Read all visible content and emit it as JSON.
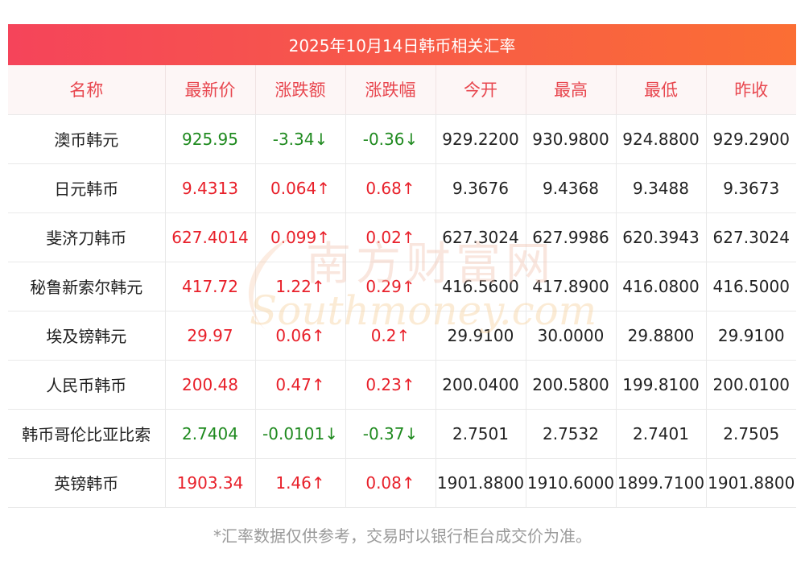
{
  "title": "2025年10月14日韩币相关汇率",
  "headers": [
    "名称",
    "最新价",
    "涨跌额",
    "涨跌幅",
    "今开",
    "最高",
    "最低",
    "昨收"
  ],
  "rows": [
    {
      "name": "澳币韩元",
      "latest": "925.95",
      "change": "-3.34↓",
      "change_pct": "-0.36↓",
      "open": "929.2200",
      "high": "930.9800",
      "low": "924.8800",
      "prev_close": "929.2900",
      "direction": "down"
    },
    {
      "name": "日元韩币",
      "latest": "9.4313",
      "change": "0.064↑",
      "change_pct": "0.68↑",
      "open": "9.3676",
      "high": "9.4368",
      "low": "9.3488",
      "prev_close": "9.3673",
      "direction": "up"
    },
    {
      "name": "斐济刀韩币",
      "latest": "627.4014",
      "change": "0.099↑",
      "change_pct": "0.02↑",
      "open": "627.3024",
      "high": "627.9986",
      "low": "620.3943",
      "prev_close": "627.3024",
      "direction": "up"
    },
    {
      "name": "秘鲁新索尔韩元",
      "latest": "417.72",
      "change": "1.22↑",
      "change_pct": "0.29↑",
      "open": "416.5600",
      "high": "417.8900",
      "low": "416.0800",
      "prev_close": "416.5000",
      "direction": "up"
    },
    {
      "name": "埃及镑韩元",
      "latest": "29.97",
      "change": "0.06↑",
      "change_pct": "0.2↑",
      "open": "29.9100",
      "high": "30.0000",
      "low": "29.8800",
      "prev_close": "29.9100",
      "direction": "up"
    },
    {
      "name": "人民币韩币",
      "latest": "200.48",
      "change": "0.47↑",
      "change_pct": "0.23↑",
      "open": "200.0400",
      "high": "200.5800",
      "low": "199.8100",
      "prev_close": "200.0100",
      "direction": "up"
    },
    {
      "name": "韩币哥伦比亚比索",
      "latest": "2.7404",
      "change": "-0.0101↓",
      "change_pct": "-0.37↓",
      "open": "2.7501",
      "high": "2.7532",
      "low": "2.7401",
      "prev_close": "2.7505",
      "direction": "down"
    },
    {
      "name": "英镑韩币",
      "latest": "1903.34",
      "change": "1.46↑",
      "change_pct": "0.08↑",
      "open": "1901.8800",
      "high": "1910.6000",
      "low": "1899.7100",
      "prev_close": "1901.8800",
      "direction": "up"
    }
  ],
  "footnote": "*汇率数据仅供参考，交易时以银行柜台成交价为准。",
  "watermark": {
    "cn": "南方财富网",
    "en": "Southmoney.com"
  },
  "colors": {
    "up": "#e8202a",
    "down": "#1f8a1f",
    "header_text": "#e8474f",
    "title_start": "#f5445a",
    "title_end": "#fb6e34"
  }
}
